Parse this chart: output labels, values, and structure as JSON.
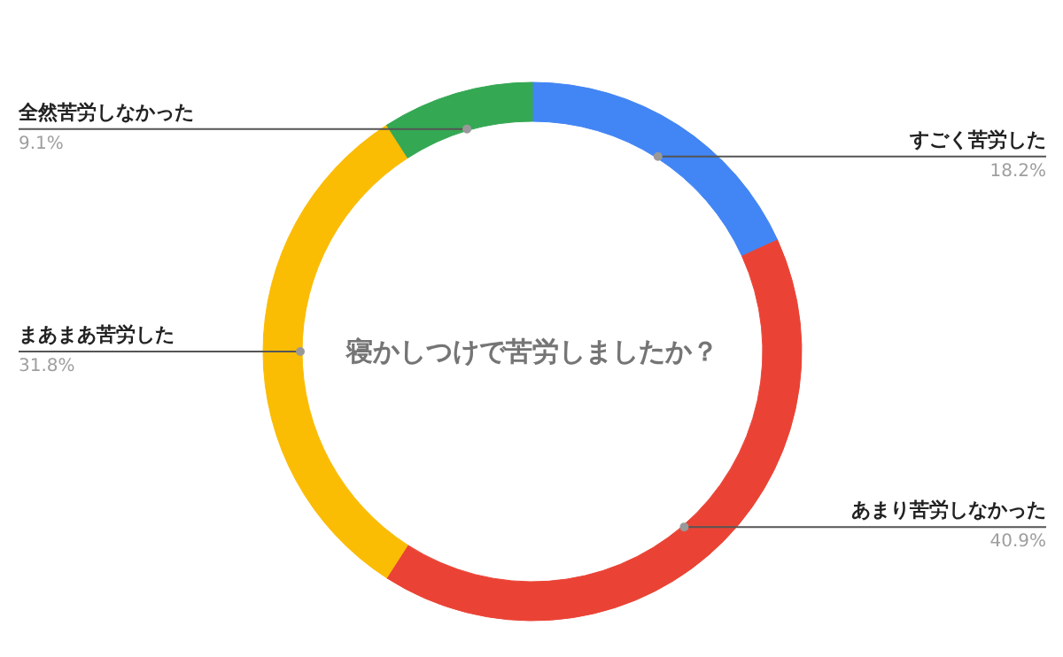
{
  "chart_data": {
    "type": "donut",
    "title": "寝かしつけで苦労しましたか？",
    "categories": [
      "すごく苦労した",
      "あまり苦労しなかった",
      "まあまあ苦労した",
      "全然苦労しなかった"
    ],
    "values": [
      18.2,
      40.9,
      31.8,
      9.1
    ],
    "value_labels": [
      "18.2%",
      "40.9%",
      "31.8%",
      "9.1%"
    ],
    "colors": [
      "#4285f4",
      "#ea4335",
      "#fbbc04",
      "#34a853"
    ],
    "legend": false
  }
}
